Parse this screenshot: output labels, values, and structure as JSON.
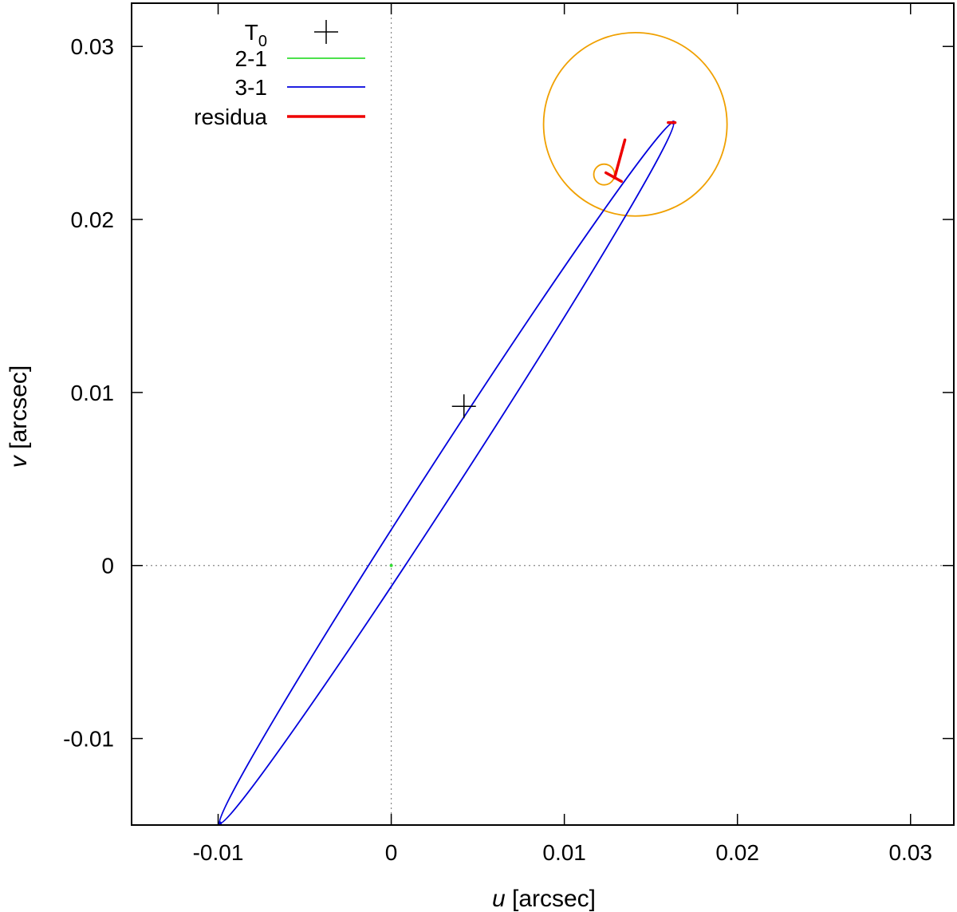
{
  "chart_data": {
    "type": "line",
    "xlabel": {
      "var": "u",
      "unit": " [arcsec]"
    },
    "ylabel": {
      "var": "v",
      "unit": " [arcsec]"
    },
    "xlim": [
      -0.015,
      0.0325
    ],
    "ylim": [
      -0.015,
      0.0325
    ],
    "xticks": [
      {
        "value": -0.01,
        "label": "-0.01"
      },
      {
        "value": 0,
        "label": "0"
      },
      {
        "value": 0.01,
        "label": "0.01"
      },
      {
        "value": 0.02,
        "label": "0.02"
      },
      {
        "value": 0.03,
        "label": "0.03"
      }
    ],
    "yticks": [
      {
        "value": -0.01,
        "label": "-0.01"
      },
      {
        "value": 0,
        "label": "0"
      },
      {
        "value": 0.01,
        "label": "0.01"
      },
      {
        "value": 0.02,
        "label": "0.02"
      },
      {
        "value": 0.03,
        "label": "0.03"
      }
    ],
    "zero_lines": true,
    "grid": false,
    "legend": {
      "placement": "top-left",
      "t0_label": "T",
      "t0_sub": "0",
      "entries": [
        {
          "label": "2-1",
          "color": "#33dd33"
        },
        {
          "label": "3-1",
          "color": "#0000dd"
        },
        {
          "label": "residua",
          "color": "#ee0000"
        }
      ]
    },
    "series": [
      {
        "name": "3-1",
        "color": "#0000dd",
        "ellipse": {
          "end_a": [
            -0.0099,
            -0.0149
          ],
          "end_b": [
            0.0163,
            0.0256
          ],
          "half_width": 0.00092
        }
      },
      {
        "name": "2-1",
        "color": "#33dd33",
        "points": [
          [
            0,
            0
          ]
        ]
      },
      {
        "name": "orbit",
        "color": "#f0a000",
        "loop": {
          "center": [
            0.0141,
            0.0255
          ],
          "radius": 0.0053
        },
        "small_loop": {
          "center": [
            0.0123,
            0.0226
          ],
          "radius": 0.0006
        }
      },
      {
        "name": "residua",
        "color": "#ee0000",
        "segments": [
          [
            [
              0.0129,
              0.0224
            ],
            [
              0.0135,
              0.0246
            ]
          ],
          [
            [
              0.0124,
              0.0227
            ],
            [
              0.0133,
              0.0222
            ]
          ],
          [
            [
              0.016,
              0.0256
            ],
            [
              0.0164,
              0.0256
            ]
          ]
        ]
      },
      {
        "name": "T0",
        "color": "#000000",
        "marker": "plus",
        "points": [
          [
            0.0042,
            0.0092
          ]
        ]
      }
    ]
  }
}
